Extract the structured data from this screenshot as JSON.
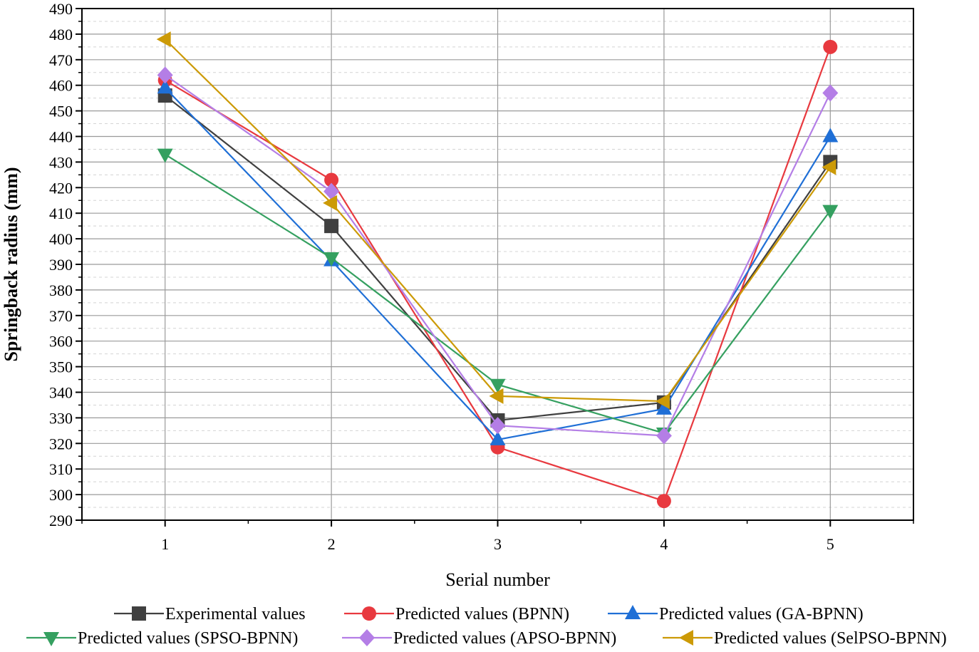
{
  "chart_data": {
    "type": "line",
    "title": "",
    "xlabel": "Serial number",
    "ylabel": "Springback radius  (mm)",
    "x": [
      1,
      2,
      3,
      4,
      5
    ],
    "xlim": [
      0.5,
      5.5
    ],
    "ylim": [
      290,
      490
    ],
    "yticks": [
      290,
      300,
      310,
      320,
      330,
      340,
      350,
      360,
      370,
      380,
      390,
      400,
      410,
      420,
      430,
      440,
      450,
      460,
      470,
      480,
      490
    ],
    "xticks": [
      1,
      2,
      3,
      4,
      5
    ],
    "grid": true,
    "legend_position": "bottom",
    "series": [
      {
        "name": "Experimental values",
        "color": "#404040",
        "marker": "square",
        "values": [
          456,
          405,
          329,
          336,
          430
        ]
      },
      {
        "name": "Predicted values (BPNN)",
        "color": "#e8393f",
        "marker": "circle",
        "values": [
          462,
          423,
          318.5,
          297.5,
          475
        ]
      },
      {
        "name": "Predicted values (GA-BPNN)",
        "color": "#1f6fd6",
        "marker": "triangle-up",
        "values": [
          459,
          391.5,
          321.5,
          333.5,
          440
        ]
      },
      {
        "name": "Predicted values (SPSO-BPNN)",
        "color": "#35a060",
        "marker": "triangle-down",
        "values": [
          433,
          392.5,
          343,
          324,
          411
        ]
      },
      {
        "name": "Predicted values (APSO-BPNN)",
        "color": "#b47ee6",
        "marker": "diamond",
        "values": [
          464,
          418.5,
          327,
          323,
          457
        ]
      },
      {
        "name": "Predicted values (SelPSO-BPNN)",
        "color": "#cc9a06",
        "marker": "triangle-left",
        "values": [
          478,
          414,
          338.5,
          336.5,
          428
        ]
      }
    ]
  }
}
